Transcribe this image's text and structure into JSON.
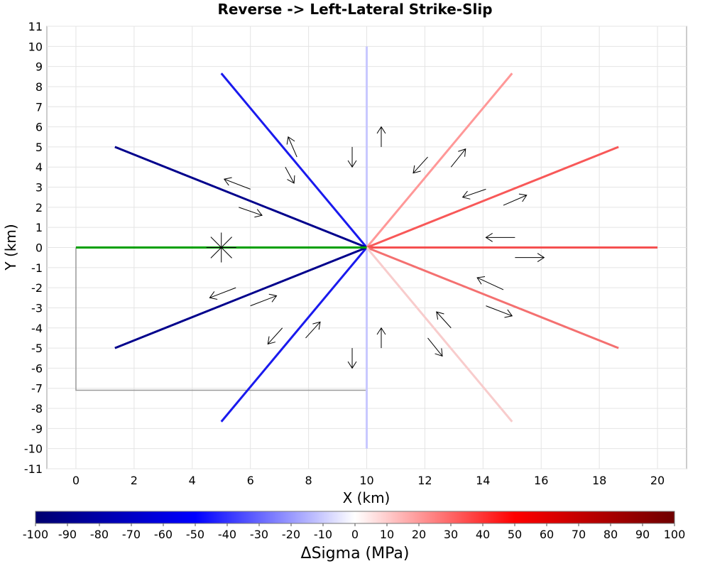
{
  "chart_data": {
    "type": "line",
    "title": "Reverse -> Left-Lateral Strike-Slip",
    "xlabel": "X (km)",
    "ylabel": "Y (km)",
    "xlim": [
      -1,
      21
    ],
    "ylim": [
      -11,
      11
    ],
    "xticks": [
      0,
      2,
      4,
      6,
      8,
      10,
      12,
      14,
      16,
      18,
      20
    ],
    "yticks": [
      -11,
      -10,
      -9,
      -8,
      -7,
      -6,
      -5,
      -4,
      -3,
      -2,
      -1,
      0,
      1,
      2,
      3,
      4,
      5,
      6,
      7,
      8,
      9,
      10,
      11
    ],
    "grid": true,
    "center": [
      10,
      0
    ],
    "source_fault": {
      "x": [
        0,
        10
      ],
      "y": [
        0,
        0
      ],
      "color": "#00a000",
      "hypocenter": [
        5,
        0
      ]
    },
    "fault_box": {
      "x": [
        0,
        0,
        10
      ],
      "y": [
        0,
        -7.1,
        -7.1
      ],
      "color": "#999999"
    },
    "receivers": [
      {
        "azimuth_deg": 90,
        "end": [
          10,
          10
        ],
        "delta_sigma": -10,
        "color": "#c8c8ff"
      },
      {
        "azimuth_deg": -90,
        "end": [
          10,
          -10
        ],
        "delta_sigma": -10,
        "color": "#c8c8ff"
      },
      {
        "azimuth_deg": 120,
        "end": [
          5,
          8.66
        ],
        "delta_sigma": -60,
        "color": "#1a1aee"
      },
      {
        "azimuth_deg": -120,
        "end": [
          5,
          -8.66
        ],
        "delta_sigma": -60,
        "color": "#1a1aee"
      },
      {
        "azimuth_deg": 150,
        "end": [
          1.34,
          5
        ],
        "delta_sigma": -95,
        "color": "#00008c"
      },
      {
        "azimuth_deg": -150,
        "end": [
          1.34,
          -5
        ],
        "delta_sigma": -95,
        "color": "#00008c"
      },
      {
        "azimuth_deg": 60,
        "end": [
          15,
          8.66
        ],
        "delta_sigma": 20,
        "color": "#ff9898"
      },
      {
        "azimuth_deg": 30,
        "end": [
          18.66,
          5
        ],
        "delta_sigma": 35,
        "color": "#f85858"
      },
      {
        "azimuth_deg": 0,
        "end": [
          20,
          0
        ],
        "delta_sigma": 38,
        "color": "#f55050"
      },
      {
        "azimuth_deg": -30,
        "end": [
          18.66,
          -5
        ],
        "delta_sigma": 30,
        "color": "#f47070"
      },
      {
        "azimuth_deg": -60,
        "end": [
          15,
          -8.66
        ],
        "delta_sigma": 10,
        "color": "#f8cccc"
      }
    ],
    "slip_arrows": [
      {
        "from": [
          7.6,
          4.5
        ],
        "to": [
          7.3,
          5.5
        ]
      },
      {
        "from": [
          7.2,
          4.0
        ],
        "to": [
          7.5,
          3.2
        ]
      },
      {
        "from": [
          6.0,
          2.9
        ],
        "to": [
          5.1,
          3.4
        ]
      },
      {
        "from": [
          5.6,
          2.0
        ],
        "to": [
          6.4,
          1.6
        ]
      },
      {
        "from": [
          9.5,
          5.0
        ],
        "to": [
          9.5,
          4.0
        ]
      },
      {
        "from": [
          10.5,
          5.0
        ],
        "to": [
          10.5,
          6.0
        ]
      },
      {
        "from": [
          12.1,
          4.5
        ],
        "to": [
          11.6,
          3.7
        ]
      },
      {
        "from": [
          12.9,
          4.0
        ],
        "to": [
          13.4,
          4.9
        ]
      },
      {
        "from": [
          14.1,
          2.9
        ],
        "to": [
          13.3,
          2.5
        ]
      },
      {
        "from": [
          14.7,
          2.1
        ],
        "to": [
          15.5,
          2.6
        ]
      },
      {
        "from": [
          15.1,
          0.5
        ],
        "to": [
          14.1,
          0.5
        ]
      },
      {
        "from": [
          15.1,
          -0.5
        ],
        "to": [
          16.1,
          -0.5
        ]
      },
      {
        "from": [
          14.7,
          -2.1
        ],
        "to": [
          13.8,
          -1.5
        ]
      },
      {
        "from": [
          14.1,
          -2.9
        ],
        "to": [
          15.0,
          -3.4
        ]
      },
      {
        "from": [
          12.9,
          -4.0
        ],
        "to": [
          12.4,
          -3.2
        ]
      },
      {
        "from": [
          12.1,
          -4.5
        ],
        "to": [
          12.6,
          -5.4
        ]
      },
      {
        "from": [
          10.5,
          -5.0
        ],
        "to": [
          10.5,
          -4.0
        ]
      },
      {
        "from": [
          9.5,
          -5.0
        ],
        "to": [
          9.5,
          -6.0
        ]
      },
      {
        "from": [
          7.9,
          -4.5
        ],
        "to": [
          8.4,
          -3.7
        ]
      },
      {
        "from": [
          7.1,
          -4.0
        ],
        "to": [
          6.6,
          -4.8
        ]
      },
      {
        "from": [
          6.0,
          -2.9
        ],
        "to": [
          6.9,
          -2.4
        ]
      },
      {
        "from": [
          5.5,
          -2.0
        ],
        "to": [
          4.6,
          -2.5
        ]
      }
    ]
  },
  "colorbar": {
    "label": "ΔSigma (MPa)",
    "min": -100,
    "max": 100,
    "ticks": [
      "-100",
      "-90",
      "-80",
      "-70",
      "-60",
      "-50",
      "-40",
      "-30",
      "-20",
      "-10",
      "0",
      "10",
      "20",
      "30",
      "40",
      "50",
      "60",
      "70",
      "80",
      "90",
      "100"
    ],
    "colors": [
      "#00006e",
      "#0000ff",
      "#ffffff",
      "#ff0000",
      "#6e0000"
    ]
  }
}
